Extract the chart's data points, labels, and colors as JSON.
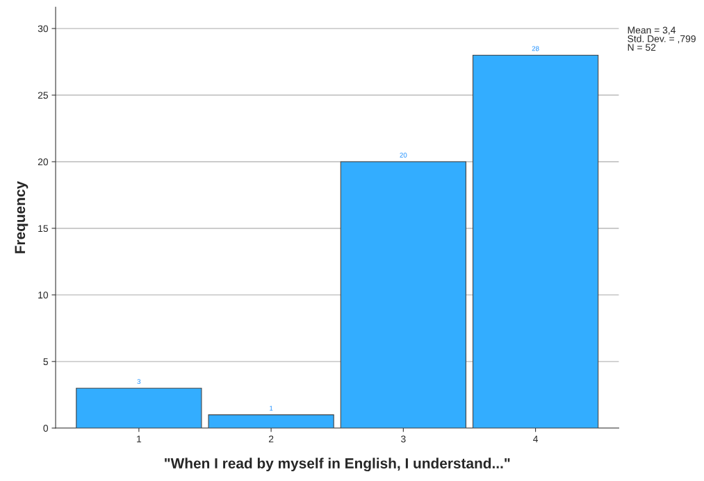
{
  "chart_data": {
    "type": "bar",
    "xlabel": "\"When I read by myself in English, I understand...\"",
    "ylabel": "Frequency",
    "categories": [
      "1",
      "2",
      "3",
      "4"
    ],
    "values": [
      3,
      1,
      20,
      28
    ],
    "color": "#33adff",
    "ylim": [
      0,
      31.6
    ],
    "yticks": [
      0,
      5,
      10,
      15,
      20,
      25,
      30
    ],
    "grid": "y",
    "data_labels": true,
    "annotations": [
      "Mean = 3,4",
      "Std. Dev. = ,799",
      "N = 52"
    ]
  }
}
